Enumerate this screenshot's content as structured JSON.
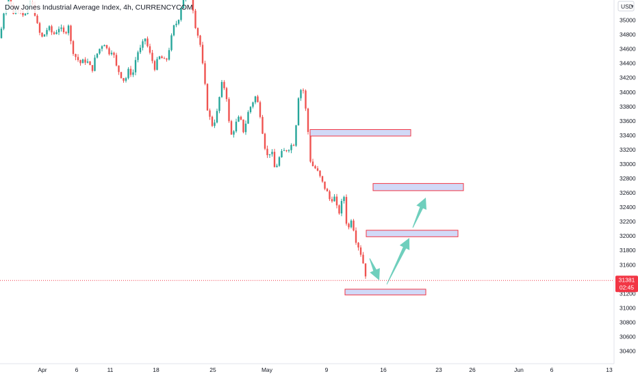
{
  "chart_data": {
    "type": "candlestick",
    "title": "Dow Jones Industrial Average Index, 4h, CURRENCYCOM",
    "currency": "USD",
    "ylim": [
      30200,
      35300
    ],
    "y_ticks": [
      35000,
      34800,
      34600,
      34400,
      34200,
      34000,
      33800,
      33600,
      33400,
      33200,
      33000,
      32800,
      32600,
      32400,
      32200,
      32000,
      31800,
      31600,
      31400,
      31200,
      31000,
      30800,
      30600,
      30400
    ],
    "x_ticks": [
      "Apr",
      "6",
      "11",
      "18",
      "25",
      "May",
      "9",
      "16",
      "23",
      "26",
      "Jun",
      "6",
      "13"
    ],
    "current_price": {
      "value": 31381,
      "label": "31381",
      "countdown": "02:45"
    },
    "colors": {
      "up": "#26a69a",
      "down": "#ef5350",
      "zone_fill": "#d1d9f7",
      "zone_border": "#f23645",
      "arrow": "#6fcfbd",
      "price_line": "#f23645"
    },
    "close_path": [
      [
        0,
        34750
      ],
      [
        6,
        35150
      ],
      [
        12,
        35300
      ],
      [
        20,
        35100
      ],
      [
        28,
        35200
      ],
      [
        36,
        35050
      ],
      [
        44,
        35250
      ],
      [
        50,
        35150
      ],
      [
        56,
        34850
      ],
      [
        62,
        34750
      ],
      [
        70,
        34900
      ],
      [
        78,
        34800
      ],
      [
        86,
        34900
      ],
      [
        94,
        34800
      ],
      [
        100,
        34950
      ],
      [
        104,
        34650
      ],
      [
        110,
        34500
      ],
      [
        118,
        34400
      ],
      [
        126,
        34450
      ],
      [
        134,
        34300
      ],
      [
        140,
        34500
      ],
      [
        148,
        34650
      ],
      [
        152,
        34700
      ],
      [
        158,
        34550
      ],
      [
        164,
        34600
      ],
      [
        170,
        34350
      ],
      [
        176,
        34250
      ],
      [
        182,
        34150
      ],
      [
        188,
        34300
      ],
      [
        194,
        34250
      ],
      [
        200,
        34550
      ],
      [
        206,
        34600
      ],
      [
        212,
        34750
      ],
      [
        218,
        34550
      ],
      [
        226,
        34350
      ],
      [
        234,
        34500
      ],
      [
        242,
        34400
      ],
      [
        248,
        34650
      ],
      [
        254,
        34900
      ],
      [
        260,
        35000
      ],
      [
        266,
        35250
      ],
      [
        272,
        35400
      ],
      [
        280,
        35300
      ],
      [
        286,
        34900
      ],
      [
        292,
        34700
      ],
      [
        298,
        34200
      ],
      [
        304,
        33700
      ],
      [
        310,
        33550
      ],
      [
        316,
        33650
      ],
      [
        320,
        33900
      ],
      [
        324,
        34100
      ],
      [
        330,
        34050
      ],
      [
        334,
        33600
      ],
      [
        338,
        33400
      ],
      [
        344,
        33550
      ],
      [
        350,
        33650
      ],
      [
        356,
        33450
      ],
      [
        362,
        33700
      ],
      [
        368,
        33850
      ],
      [
        374,
        33950
      ],
      [
        380,
        33700
      ],
      [
        386,
        33300
      ],
      [
        390,
        33100
      ],
      [
        396,
        33200
      ],
      [
        402,
        32900
      ],
      [
        406,
        33050
      ],
      [
        412,
        33150
      ],
      [
        418,
        33200
      ],
      [
        424,
        33250
      ],
      [
        430,
        33300
      ],
      [
        436,
        33950
      ],
      [
        442,
        34100
      ],
      [
        446,
        33800
      ],
      [
        450,
        33450
      ],
      [
        454,
        33000
      ],
      [
        460,
        32950
      ],
      [
        466,
        32850
      ],
      [
        470,
        32750
      ],
      [
        476,
        32650
      ],
      [
        482,
        32500
      ],
      [
        488,
        32550
      ],
      [
        494,
        32300
      ],
      [
        498,
        32400
      ],
      [
        502,
        32600
      ],
      [
        506,
        32200
      ],
      [
        510,
        32100
      ],
      [
        514,
        32300
      ],
      [
        518,
        32000
      ],
      [
        522,
        31900
      ],
      [
        526,
        31800
      ],
      [
        530,
        31650
      ],
      [
        536,
        31381
      ]
    ],
    "zones": [
      {
        "low": 33390,
        "high": 33480,
        "x_start": 453,
        "x_end": 600
      },
      {
        "low": 32630,
        "high": 32730,
        "x_start": 545,
        "x_end": 677
      },
      {
        "low": 31990,
        "high": 32080,
        "x_start": 535,
        "x_end": 669
      },
      {
        "low": 31180,
        "high": 31260,
        "x_start": 504,
        "x_end": 622
      }
    ]
  }
}
